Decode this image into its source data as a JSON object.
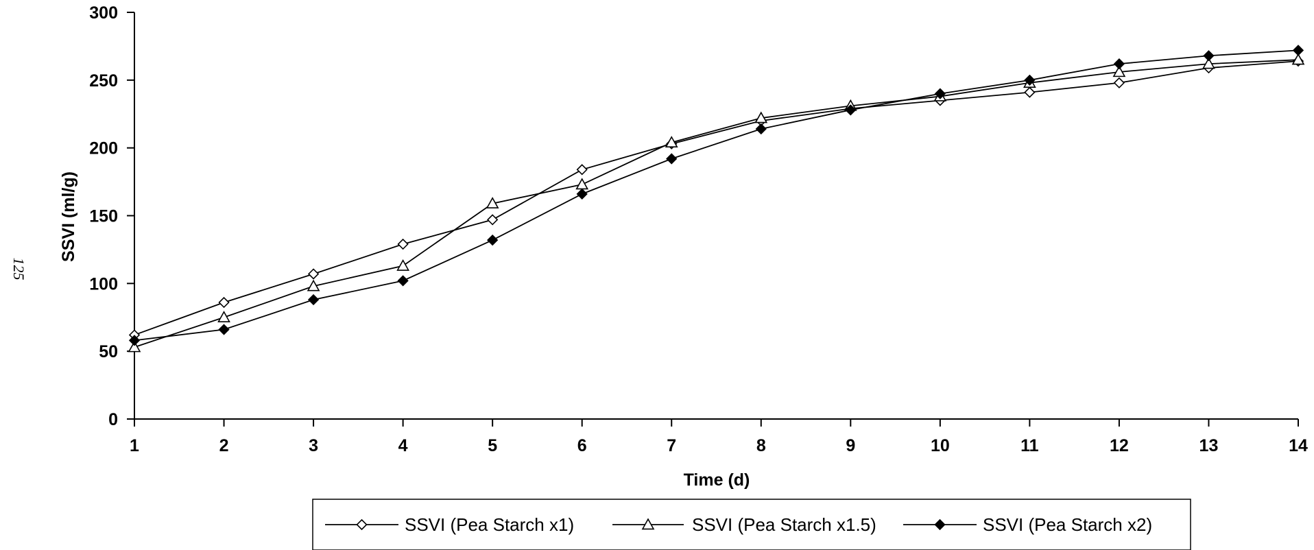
{
  "page_number": "125",
  "chart_data": {
    "type": "line",
    "xlabel": "Time (d)",
    "ylabel": "SSVI (ml/g)",
    "x": [
      1,
      2,
      3,
      4,
      5,
      6,
      7,
      8,
      9,
      10,
      11,
      12,
      13,
      14
    ],
    "xlim": [
      1,
      14
    ],
    "ylim": [
      0,
      300
    ],
    "yticks": [
      0,
      50,
      100,
      150,
      200,
      250,
      300
    ],
    "xticks": [
      1,
      2,
      3,
      4,
      5,
      6,
      7,
      8,
      9,
      10,
      11,
      12,
      13,
      14
    ],
    "grid": false,
    "legend_position": "bottom",
    "series": [
      {
        "name": "SSVI (Pea Starch x1)",
        "marker": "open-diamond",
        "color": "#000000",
        "values": [
          62,
          86,
          107,
          129,
          147,
          184,
          203,
          220,
          229,
          235,
          241,
          248,
          259,
          264
        ]
      },
      {
        "name": "SSVI (Pea Starch x1.5)",
        "marker": "open-triangle",
        "color": "#000000",
        "values": [
          53,
          75,
          98,
          113,
          159,
          173,
          204,
          222,
          231,
          238,
          248,
          256,
          262,
          265
        ]
      },
      {
        "name": "SSVI (Pea Starch x2)",
        "marker": "filled-diamond",
        "color": "#000000",
        "values": [
          58,
          66,
          88,
          102,
          132,
          166,
          192,
          214,
          228,
          240,
          250,
          262,
          268,
          272
        ]
      }
    ]
  }
}
